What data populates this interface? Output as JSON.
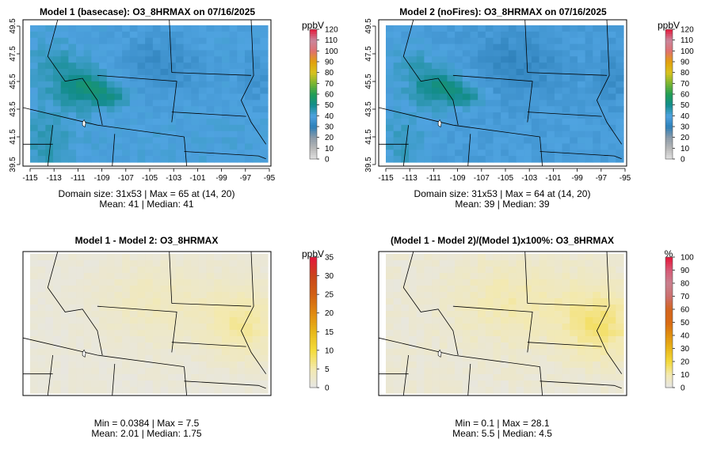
{
  "chart_data": [
    {
      "type": "heatmap",
      "title": "Model 1 (basecase): O3_8HRMAX on 07/16/2025",
      "legend_unit": "ppbV",
      "legend_ticks": [
        "0",
        "10",
        "20",
        "30",
        "40",
        "50",
        "60",
        "70",
        "80",
        "90",
        "100",
        "110",
        "120"
      ],
      "legend_range": [
        0,
        120
      ],
      "x_ticks": [
        "-115",
        "-113",
        "-111",
        "-109",
        "-107",
        "-105",
        "-103",
        "-101",
        "-99",
        "-97",
        "-95"
      ],
      "y_ticks": [
        "39.5",
        "41.5",
        "43.5",
        "45.5",
        "47.5",
        "49.5"
      ],
      "grid": "31x53",
      "stats_line1": "Domain size: 31x53 | Max = 65 at (14, 20)",
      "stats_line2": "Mean: 41 |  Median: 41",
      "max_value": 65,
      "mean": 41,
      "median": 41
    },
    {
      "type": "heatmap",
      "title": "Model 2 (noFires): O3_8HRMAX on 07/16/2025",
      "legend_unit": "ppbV",
      "legend_ticks": [
        "0",
        "10",
        "20",
        "30",
        "40",
        "50",
        "60",
        "70",
        "80",
        "90",
        "100",
        "110",
        "120"
      ],
      "legend_range": [
        0,
        120
      ],
      "x_ticks": [
        "-115",
        "-113",
        "-111",
        "-109",
        "-107",
        "-105",
        "-103",
        "-101",
        "-99",
        "-97",
        "-95"
      ],
      "y_ticks": [
        "39.5",
        "41.5",
        "43.5",
        "45.5",
        "47.5",
        "49.5"
      ],
      "grid": "31x53",
      "stats_line1": "Domain size: 31x53 | Max = 64 at (14, 20)",
      "stats_line2": "Mean: 39 |  Median: 39",
      "max_value": 64,
      "mean": 39,
      "median": 39
    },
    {
      "type": "heatmap",
      "title": "Model 1 - Model 2: O3_8HRMAX",
      "legend_unit": "ppbV",
      "legend_ticks": [
        "0",
        "5",
        "10",
        "15",
        "20",
        "25",
        "30",
        "35"
      ],
      "legend_range": [
        0,
        35
      ],
      "stats_line1": "Min = 0.0384 | Max = 7.5",
      "stats_line2": "Mean: 2.01 |  Median: 1.75",
      "min_value": 0.0384,
      "max_value": 7.5,
      "mean": 2.01,
      "median": 1.75
    },
    {
      "type": "heatmap",
      "title": "(Model 1 - Model 2)/(Model 1)x100%: O3_8HRMAX",
      "legend_unit": "%",
      "legend_ticks": [
        "0",
        "10",
        "20",
        "30",
        "40",
        "50",
        "60",
        "70",
        "80",
        "90",
        "100"
      ],
      "legend_range": [
        0,
        100
      ],
      "stats_line1": "Min = 0.1 | Max = 28.1",
      "stats_line2": "Mean: 5.5 |  Median: 4.5",
      "min_value": 0.1,
      "max_value": 28.1,
      "mean": 5.5,
      "median": 4.5
    }
  ]
}
